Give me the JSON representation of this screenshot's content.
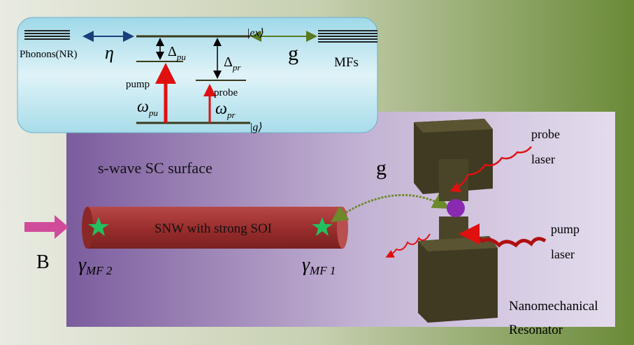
{
  "energy_diagram": {
    "phonons_label": "Phonons(NR)",
    "eta": "η",
    "g": "g",
    "mfs_label": "MFs",
    "excited_state": "|ex⟩",
    "ground_state": "|g⟩",
    "delta_pu": {
      "symbol": "Δ",
      "subscript": "pu"
    },
    "delta_pr": {
      "symbol": "Δ",
      "subscript": "pr"
    },
    "pump_label": "pump",
    "probe_label": "probe",
    "omega_pu": {
      "symbol": "ω",
      "subscript": "pu"
    },
    "omega_pr": {
      "symbol": "ω",
      "subscript": "pr"
    }
  },
  "setup": {
    "surface_label": "s-wave SC surface",
    "coupling_label": "g",
    "probe_laser_label": [
      "probe",
      "laser"
    ],
    "pump_laser_label": [
      "pump",
      "laser"
    ],
    "nanowire_label": "SNW with strong SOI",
    "field_label": "B",
    "gamma_mf2": {
      "symbol": "γ",
      "subscript": "MF 2"
    },
    "gamma_mf1": {
      "symbol": "γ",
      "subscript": "MF 1"
    },
    "resonator_label": [
      "Nanomechanical",
      "Resonator"
    ]
  }
}
